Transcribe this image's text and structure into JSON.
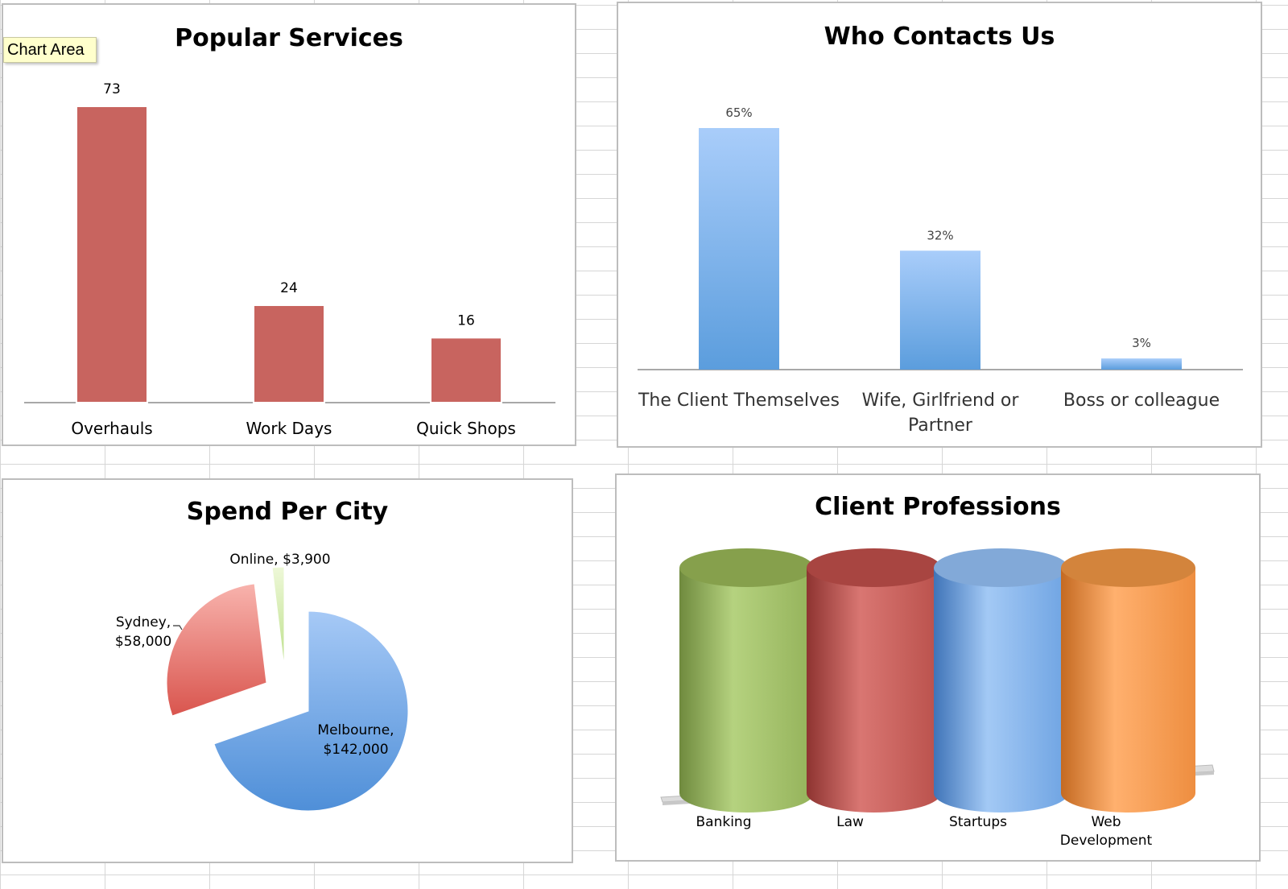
{
  "tooltip": "Chart Area",
  "chart_data": [
    {
      "type": "bar",
      "title": "Popular Services",
      "categories": [
        "Overhauls",
        "Work Days",
        "Quick Shops"
      ],
      "values": [
        73,
        24,
        16
      ],
      "data_labels": [
        "73",
        "24",
        "16"
      ],
      "ylim": [
        0,
        73
      ],
      "grid": false,
      "colors": {
        "bar": "#c8645f"
      }
    },
    {
      "type": "bar",
      "title": "Who Contacts Us",
      "categories": [
        "The Client Themselves",
        "Wife, Girlfriend or Partner",
        "Boss or colleague"
      ],
      "values": [
        65,
        32,
        3
      ],
      "data_labels": [
        "65%",
        "32%",
        "3%"
      ],
      "ylim": [
        0,
        65
      ],
      "grid": false,
      "colors": {
        "bar_top": "#a9cdfa",
        "bar_bottom": "#5b9ddd"
      }
    },
    {
      "type": "pie",
      "title": "Spend Per City",
      "categories": [
        "Melbourne",
        "Sydney",
        "Online"
      ],
      "values": [
        142000,
        58000,
        3900
      ],
      "data_labels": [
        "Melbourne, $142,000",
        "Sydney, $58,000",
        "Online, $3,900"
      ],
      "exploded": true,
      "colors": {
        "Melbourne": "#6ea8e6",
        "Sydney": "#e9807a",
        "Online": "#d6eeb0"
      }
    },
    {
      "type": "bar",
      "style": "3d-cylinder",
      "title": "Client Professions",
      "categories": [
        "Banking",
        "Law",
        "Startups",
        "Web Development"
      ],
      "values": [
        1,
        1,
        1,
        1
      ],
      "grid": false,
      "colors": {
        "Banking": "#9bbb59",
        "Law": "#c0504d",
        "Startups": "#6fa3e0",
        "Web Development": "#f79646"
      }
    }
  ]
}
